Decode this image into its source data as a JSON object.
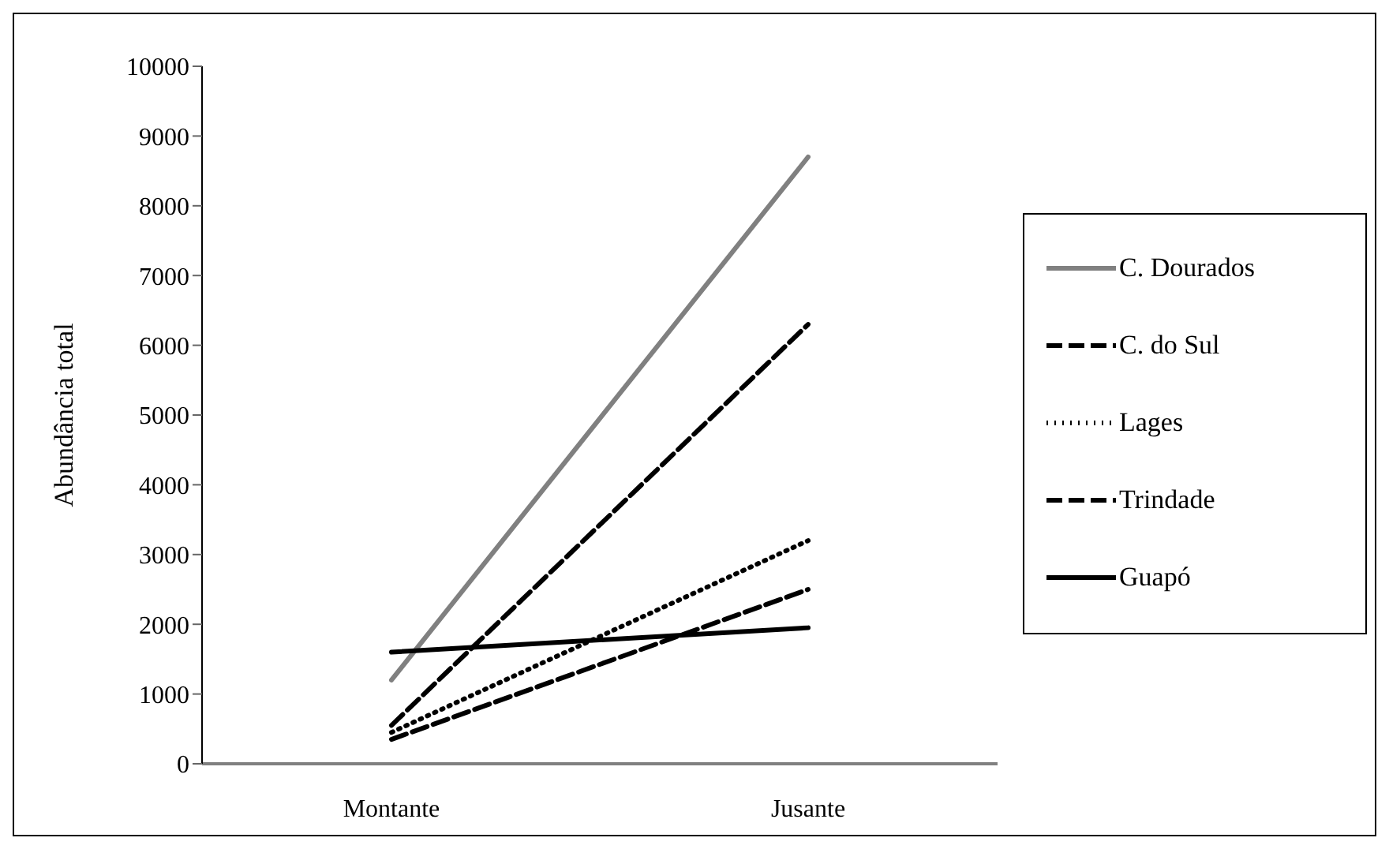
{
  "chart_data": {
    "type": "line",
    "ylabel": "Abundância total",
    "categories": [
      "Montante",
      "Jusante"
    ],
    "series": [
      {
        "name": "C. Dourados",
        "color": "#808080",
        "line_style": "solid",
        "values": [
          1200,
          8700
        ]
      },
      {
        "name": "C. do Sul",
        "color": "#000000",
        "line_style": "dashed",
        "values": [
          550,
          6300
        ]
      },
      {
        "name": "Lages",
        "color": "#000000",
        "line_style": "dotted",
        "values": [
          450,
          3200
        ]
      },
      {
        "name": "Trindade",
        "color": "#000000",
        "line_style": "dashed",
        "values": [
          350,
          2500
        ]
      },
      {
        "name": "Guapó",
        "color": "#000000",
        "line_style": "solid",
        "values": [
          1600,
          1950
        ]
      }
    ],
    "ylim": [
      0,
      10000
    ],
    "yticks": [
      0,
      1000,
      2000,
      3000,
      4000,
      5000,
      6000,
      7000,
      8000,
      9000,
      10000
    ],
    "grid": false,
    "legend": "right",
    "marker": "none"
  }
}
